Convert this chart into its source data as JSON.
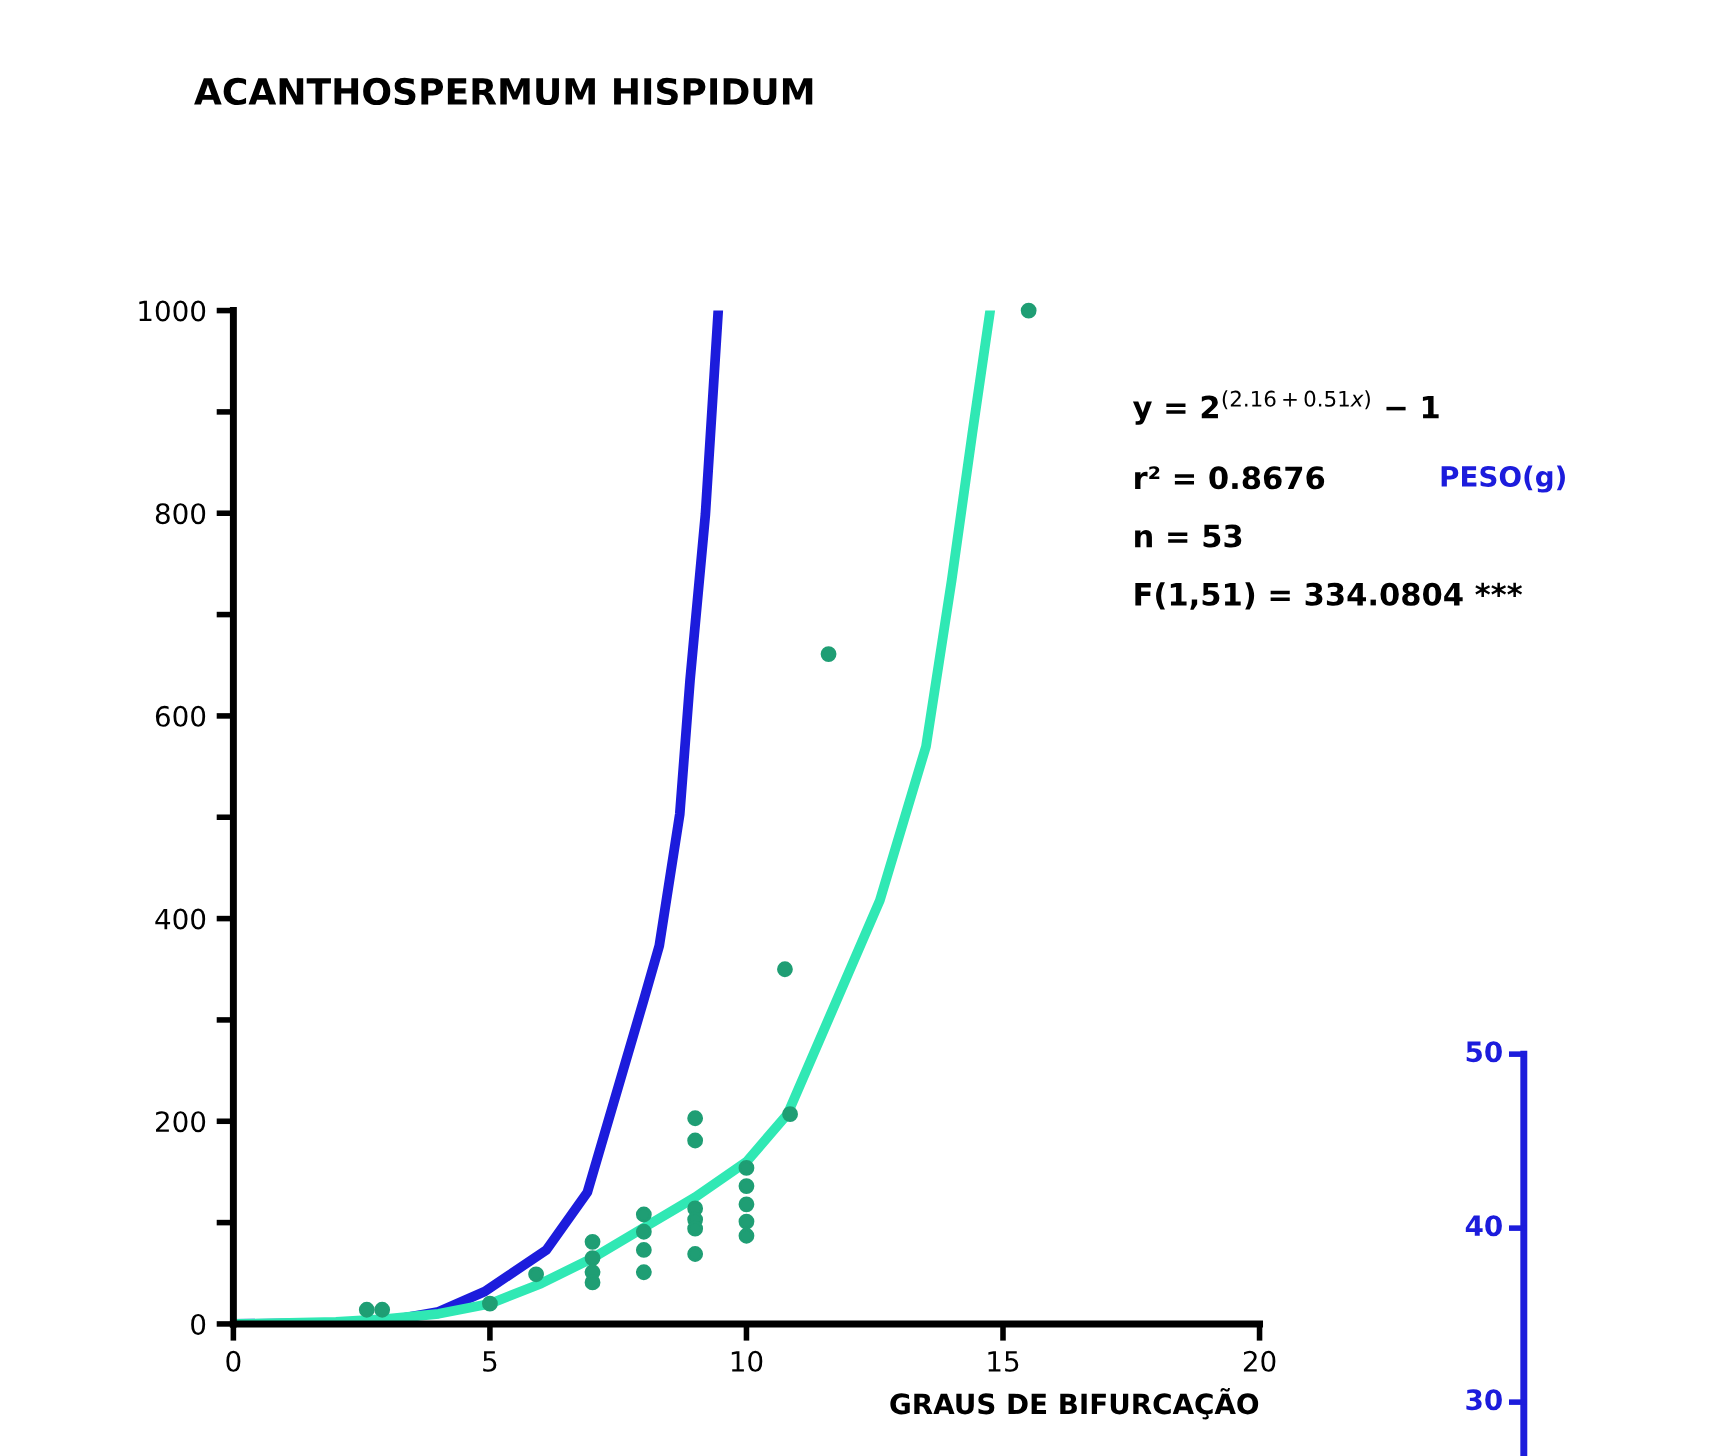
{
  "chart_data": [
    {
      "type": "line",
      "title": "ACANTHOSPERMUM HISPIDUM",
      "xlabel": "GRAUS DE BIFURCAÇÃO",
      "xlim": [
        0,
        20
      ],
      "xticks": [
        0,
        5,
        10,
        15,
        20
      ],
      "ylim": [
        0,
        1000
      ],
      "yticks": [
        0,
        {
          "value": 100,
          "label": null
        },
        200,
        {
          "value": 300,
          "label": null
        },
        400,
        {
          "value": 500,
          "label": null
        },
        600,
        {
          "value": 700,
          "label": null
        },
        800,
        {
          "value": 900,
          "label": null
        },
        1000
      ],
      "series": [
        {
          "color": "#1c1cdc",
          "x": [
            0,
            2,
            3,
            4,
            4.9,
            6.1,
            6.9,
            8.0,
            8.3,
            8.7,
            8.9,
            9.2,
            9.45
          ],
          "values": [
            0,
            1,
            3,
            12,
            32,
            73,
            130,
            320,
            373,
            503,
            635,
            799,
            1000
          ]
        },
        {
          "color": "#30e8b4",
          "x": [
            0,
            2,
            3,
            4,
            5,
            6,
            7,
            8,
            9,
            10,
            10.8,
            12.6,
            13.5,
            14.0,
            14.4,
            14.75
          ],
          "values": [
            0,
            2,
            5,
            10,
            20,
            40,
            65,
            95,
            125,
            160,
            207,
            418,
            570,
            734,
            878,
            1000
          ]
        },
        {
          "type": "scatter",
          "color": "#1f9e74",
          "x": [
            2.6,
            2.9,
            5,
            5.9,
            7,
            7,
            7,
            7,
            8,
            8,
            8,
            8,
            9,
            9,
            9,
            9,
            9,
            9,
            10,
            10,
            10,
            10,
            10,
            10.75,
            10.85,
            11.6,
            15.5
          ],
          "values": [
            14,
            14,
            20,
            49,
            81,
            65,
            51,
            41,
            108,
            91,
            73,
            51,
            203,
            181,
            114,
            103,
            94,
            69,
            154,
            136,
            118,
            101,
            87,
            350,
            207,
            661,
            1000
          ]
        }
      ],
      "annotations": [
        "y = 2$^{(2.16+0.51x)}$ − 1",
        "r² = 0.8676",
        "n = 53",
        "F(1,51) = 334.0804 ***"
      ]
    },
    {
      "type": "other",
      "color": "#1c1cdc",
      "annotations": [
        "PESO(g)",
        "50",
        "40",
        "30"
      ]
    }
  ]
}
